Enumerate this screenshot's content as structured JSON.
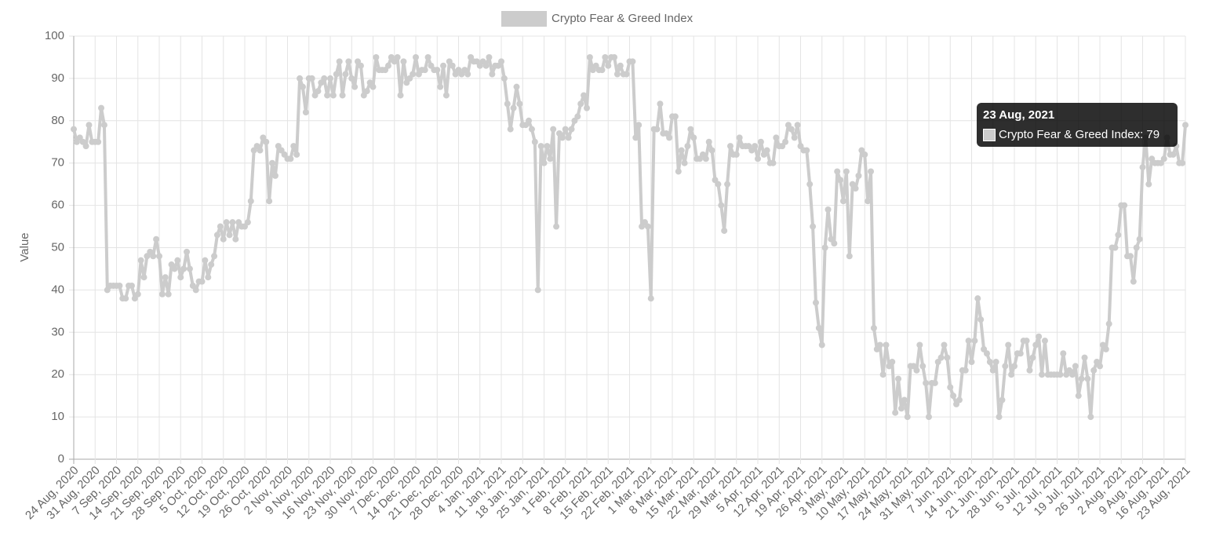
{
  "chart_data": {
    "type": "line",
    "y_label": "Value",
    "categories": [
      "24 Aug, 2020",
      null,
      null,
      null,
      null,
      null,
      null,
      "31 Aug, 2020",
      null,
      null,
      null,
      null,
      null,
      null,
      "7 Sep, 2020",
      null,
      null,
      null,
      null,
      null,
      null,
      "14 Sep, 2020",
      null,
      null,
      null,
      null,
      null,
      null,
      "21 Sep, 2020",
      null,
      null,
      null,
      null,
      null,
      null,
      "28 Sep, 2020",
      null,
      null,
      null,
      null,
      null,
      null,
      "5 Oct, 2020",
      null,
      null,
      null,
      null,
      null,
      null,
      "12 Oct, 2020",
      null,
      null,
      null,
      null,
      null,
      null,
      "19 Oct, 2020",
      null,
      null,
      null,
      null,
      null,
      null,
      "26 Oct, 2020",
      null,
      null,
      null,
      null,
      null,
      null,
      "2 Nov, 2020",
      null,
      null,
      null,
      null,
      null,
      null,
      "9 Nov, 2020",
      null,
      null,
      null,
      null,
      null,
      null,
      "16 Nov, 2020",
      null,
      null,
      null,
      null,
      null,
      null,
      "23 Nov, 2020",
      null,
      null,
      null,
      null,
      null,
      null,
      "30 Nov, 2020",
      null,
      null,
      null,
      null,
      null,
      null,
      "7 Dec, 2020",
      null,
      null,
      null,
      null,
      null,
      null,
      "14 Dec, 2020",
      null,
      null,
      null,
      null,
      null,
      null,
      "21 Dec, 2020",
      null,
      null,
      null,
      null,
      null,
      null,
      "28 Dec, 2020",
      null,
      null,
      null,
      null,
      null,
      null,
      "4 Jan, 2021",
      null,
      null,
      null,
      null,
      null,
      null,
      "11 Jan, 2021",
      null,
      null,
      null,
      null,
      null,
      null,
      "18 Jan, 2021",
      null,
      null,
      null,
      null,
      null,
      null,
      "25 Jan, 2021",
      null,
      null,
      null,
      null,
      null,
      null,
      "1 Feb, 2021",
      null,
      null,
      null,
      null,
      null,
      null,
      "8 Feb, 2021",
      null,
      null,
      null,
      null,
      null,
      null,
      "15 Feb, 2021",
      null,
      null,
      null,
      null,
      null,
      null,
      "22 Feb, 2021",
      null,
      null,
      null,
      null,
      null,
      null,
      "1 Mar, 2021",
      null,
      null,
      null,
      null,
      null,
      null,
      "8 Mar, 2021",
      null,
      null,
      null,
      null,
      null,
      null,
      "15 Mar, 2021",
      null,
      null,
      null,
      null,
      null,
      null,
      "22 Mar, 2021",
      null,
      null,
      null,
      null,
      null,
      null,
      "29 Mar, 2021",
      null,
      null,
      null,
      null,
      null,
      null,
      "5 Apr, 2021",
      null,
      null,
      null,
      null,
      null,
      null,
      "12 Apr, 2021",
      null,
      null,
      null,
      null,
      null,
      null,
      "19 Apr, 2021",
      null,
      null,
      null,
      null,
      null,
      null,
      "26 Apr, 2021",
      null,
      null,
      null,
      null,
      null,
      null,
      "3 May, 2021",
      null,
      null,
      null,
      null,
      null,
      null,
      "10 May, 2021",
      null,
      null,
      null,
      null,
      null,
      null,
      "17 May, 2021",
      null,
      null,
      null,
      null,
      null,
      null,
      "24 May, 2021",
      null,
      null,
      null,
      null,
      null,
      null,
      "31 May, 2021",
      null,
      null,
      null,
      null,
      null,
      null,
      "7 Jun, 2021",
      null,
      null,
      null,
      null,
      null,
      null,
      "14 Jun, 2021",
      null,
      null,
      null,
      null,
      null,
      null,
      "21 Jun, 2021",
      null,
      null,
      null,
      null,
      null,
      null,
      "28 Jun, 2021",
      null,
      null,
      null,
      null,
      null,
      null,
      "5 Jul, 2021",
      null,
      null,
      null,
      null,
      null,
      null,
      "12 Jul, 2021",
      null,
      null,
      null,
      null,
      null,
      null,
      "19 Jul, 2021",
      null,
      null,
      null,
      null,
      null,
      null,
      "26 Jul, 2021",
      null,
      null,
      null,
      null,
      null,
      null,
      "2 Aug, 2021",
      null,
      null,
      null,
      null,
      null,
      null,
      "9 Aug, 2021",
      null,
      null,
      null,
      null,
      null,
      null,
      "16 Aug, 2021",
      null,
      null,
      null,
      null,
      null,
      null,
      "23 Aug, 2021"
    ],
    "series": [
      {
        "name": "Crypto Fear & Greed Index",
        "color": "#cccccc",
        "values": [
          78,
          75,
          76,
          75,
          74,
          79,
          75,
          75,
          75,
          83,
          79,
          40,
          41,
          41,
          41,
          41,
          38,
          38,
          41,
          41,
          38,
          39,
          47,
          43,
          48,
          49,
          48,
          52,
          48,
          39,
          43,
          39,
          46,
          45,
          47,
          43,
          45,
          49,
          45,
          41,
          40,
          42,
          42,
          47,
          43,
          46,
          48,
          53,
          55,
          52,
          56,
          53,
          56,
          52,
          56,
          55,
          55,
          56,
          61,
          73,
          74,
          73,
          76,
          75,
          61,
          70,
          67,
          74,
          73,
          72,
          71,
          71,
          74,
          72,
          90,
          88,
          82,
          90,
          90,
          86,
          87,
          89,
          90,
          86,
          90,
          86,
          91,
          94,
          86,
          91,
          94,
          90,
          88,
          94,
          93,
          86,
          87,
          89,
          88,
          95,
          92,
          92,
          92,
          93,
          95,
          94,
          95,
          86,
          94,
          89,
          90,
          91,
          95,
          91,
          92,
          92,
          95,
          93,
          92,
          92,
          88,
          93,
          86,
          94,
          93,
          91,
          92,
          91,
          92,
          91,
          95,
          94,
          94,
          93,
          94,
          93,
          95,
          91,
          93,
          93,
          94,
          90,
          84,
          78,
          83,
          88,
          84,
          79,
          79,
          80,
          78,
          75,
          40,
          74,
          70,
          74,
          71,
          78,
          55,
          77,
          76,
          78,
          76,
          78,
          80,
          81,
          84,
          86,
          83,
          95,
          92,
          93,
          92,
          92,
          95,
          93,
          95,
          95,
          91,
          93,
          91,
          91,
          94,
          94,
          76,
          79,
          55,
          56,
          55,
          38,
          78,
          78,
          84,
          77,
          77,
          76,
          81,
          81,
          68,
          73,
          70,
          74,
          78,
          76,
          71,
          71,
          72,
          71,
          75,
          73,
          66,
          65,
          60,
          54,
          65,
          74,
          72,
          72,
          76,
          74,
          74,
          74,
          73,
          74,
          71,
          75,
          72,
          73,
          70,
          70,
          76,
          74,
          74,
          75,
          79,
          78,
          76,
          79,
          74,
          73,
          73,
          65,
          55,
          37,
          31,
          27,
          50,
          59,
          52,
          51,
          68,
          66,
          61,
          68,
          48,
          65,
          64,
          67,
          73,
          72,
          61,
          68,
          31,
          26,
          27,
          20,
          27,
          22,
          23,
          11,
          19,
          12,
          14,
          10,
          22,
          22,
          21,
          27,
          22,
          18,
          10,
          18,
          18,
          23,
          24,
          27,
          24,
          17,
          15,
          13,
          14,
          21,
          21,
          28,
          23,
          28,
          38,
          33,
          26,
          25,
          23,
          21,
          23,
          10,
          14,
          22,
          27,
          20,
          22,
          25,
          25,
          28,
          28,
          21,
          24,
          27,
          29,
          20,
          28,
          20,
          20,
          20,
          20,
          20,
          25,
          20,
          21,
          20,
          22,
          15,
          19,
          24,
          19,
          10,
          21,
          23,
          22,
          27,
          26,
          32,
          50,
          50,
          53,
          60,
          60,
          48,
          48,
          42,
          50,
          52,
          69,
          76,
          65,
          71,
          70,
          70,
          70,
          71,
          76,
          72,
          72,
          74,
          70,
          70,
          79
        ]
      }
    ],
    "ylim": [
      0,
      100
    ],
    "yticks": [
      0,
      10,
      20,
      30,
      40,
      50,
      60,
      70,
      80,
      90,
      100
    ],
    "grid": true,
    "tooltip": {
      "title": "23 Aug, 2021",
      "label": "Crypto Fear & Greed Index: 79"
    }
  }
}
